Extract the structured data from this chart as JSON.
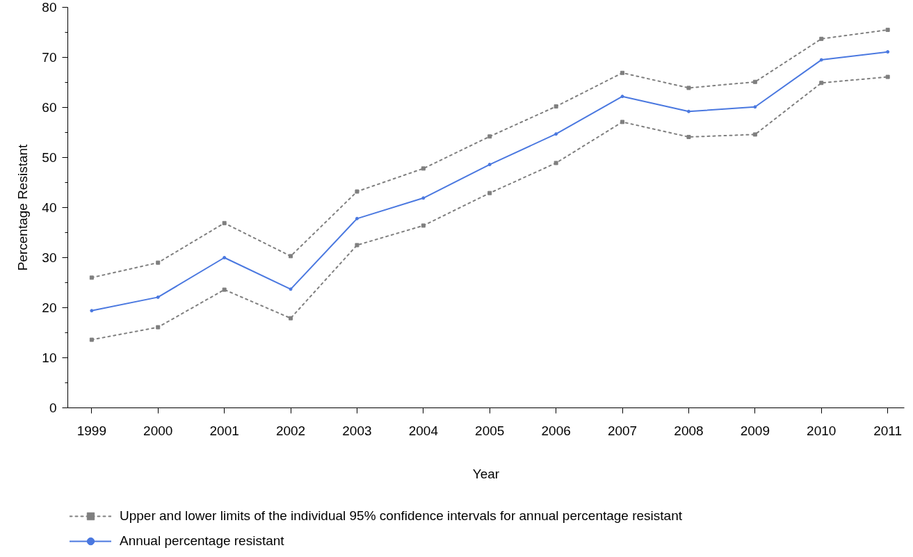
{
  "chart_data": {
    "type": "line",
    "xlabel": "Year",
    "ylabel": "Percentage Resistant",
    "categories": [
      "1999",
      "2000",
      "2001",
      "2002",
      "2003",
      "2004",
      "2005",
      "2006",
      "2007",
      "2008",
      "2009",
      "2010",
      "2011"
    ],
    "ylim": [
      0,
      80
    ],
    "yticks": [
      0,
      {
        "value": 5,
        "label": null
      },
      10,
      {
        "value": 15,
        "label": null
      },
      20,
      {
        "value": 25,
        "label": null
      },
      30,
      {
        "value": 35,
        "label": null
      },
      40,
      {
        "value": 45,
        "label": null
      },
      50,
      {
        "value": 55,
        "label": null
      },
      60,
      {
        "value": 65,
        "label": null
      },
      70,
      {
        "value": 75,
        "label": null
      },
      80
    ],
    "legend": "bottom left",
    "series": [
      {
        "name": "Upper and lower limits of the individual 95% confidence intervals for annual percentage resistant",
        "color": "#7f7f7f",
        "line_style": "dotted",
        "marker": "square",
        "values": [
          26.0,
          29.0,
          36.9,
          30.3,
          43.2,
          47.8,
          54.2,
          60.2,
          66.9,
          63.9,
          65.1,
          73.7,
          75.5
        ]
      },
      {
        "color": "#7f7f7f",
        "line_style": "dotted",
        "marker": "square",
        "values": [
          13.6,
          16.1,
          23.6,
          17.9,
          32.5,
          36.4,
          42.9,
          48.9,
          57.1,
          54.1,
          54.6,
          64.9,
          66.1
        ]
      },
      {
        "name": "Annual percentage resistant",
        "color": "#4a78e0",
        "line_style": "solid",
        "marker": "circle",
        "values": [
          19.4,
          22.1,
          30.0,
          23.7,
          37.8,
          41.9,
          48.6,
          54.7,
          62.2,
          59.2,
          60.1,
          69.5,
          71.1
        ]
      }
    ]
  }
}
